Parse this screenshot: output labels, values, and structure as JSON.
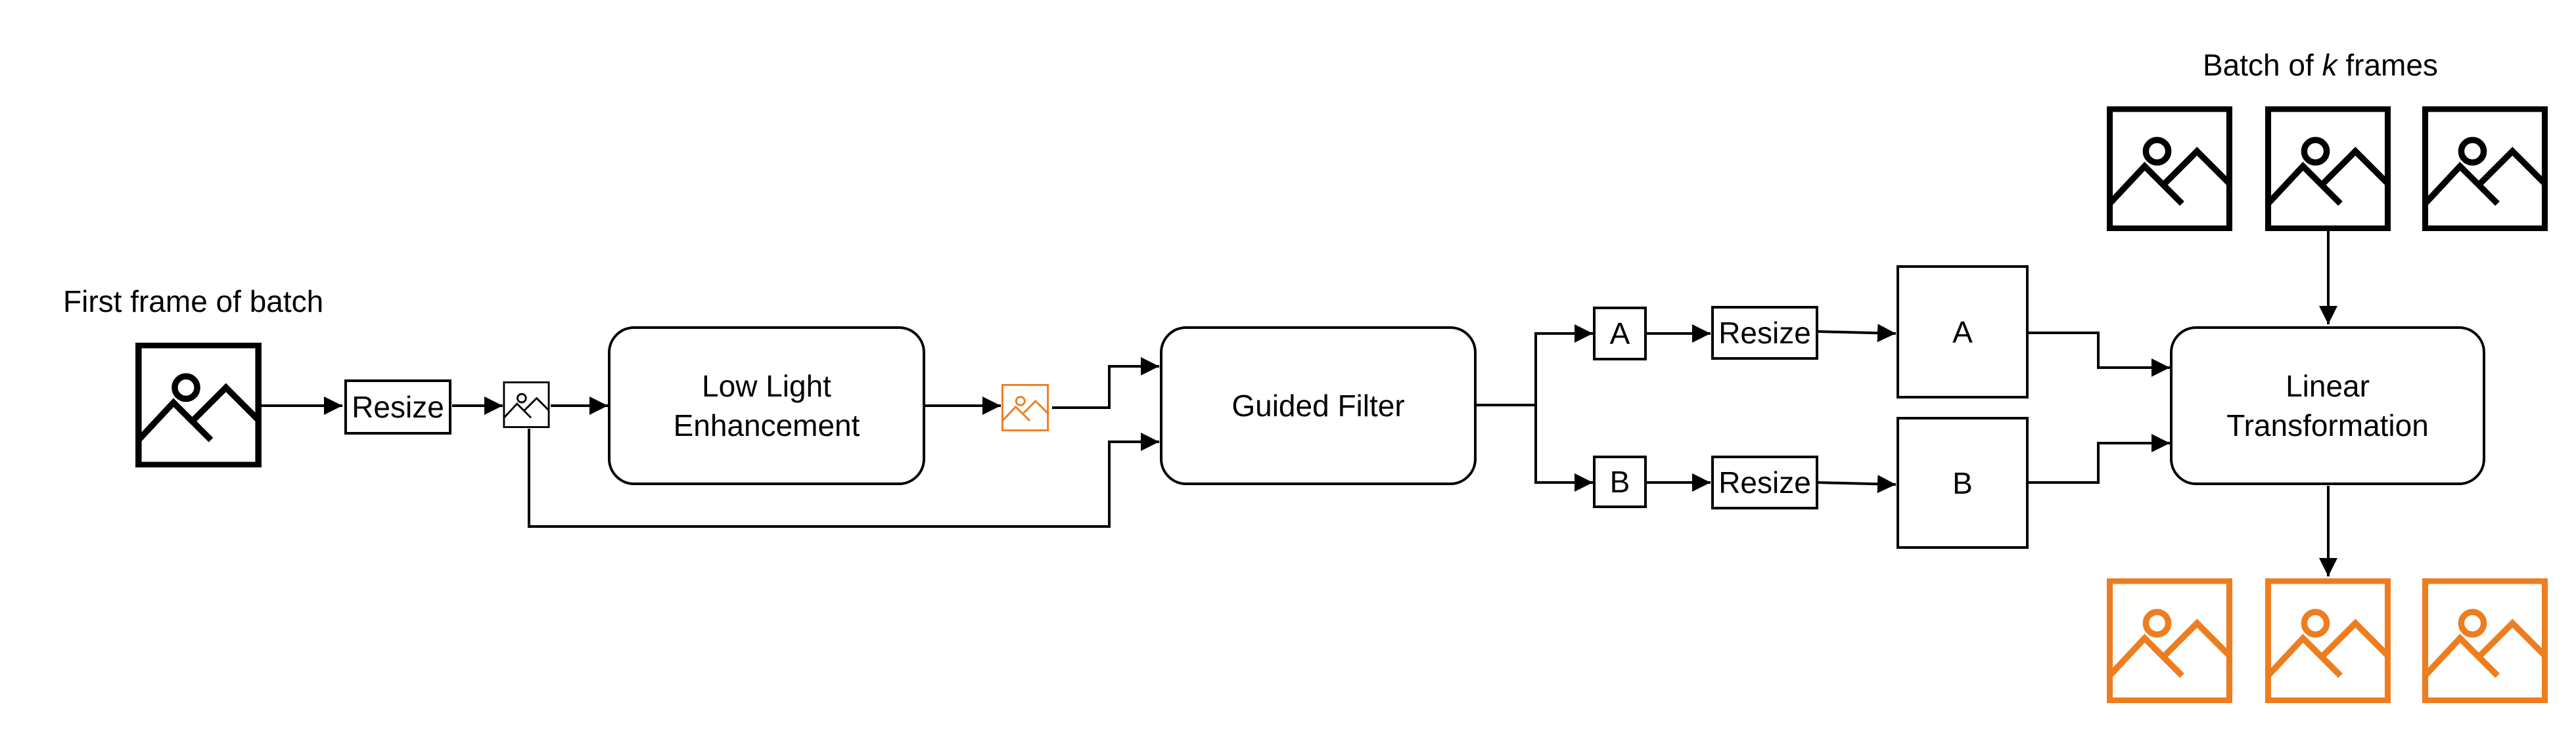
{
  "labels": {
    "first_frame": "First frame of batch",
    "batch_prefix": "Batch of ",
    "batch_k": "k",
    "batch_suffix": " frames"
  },
  "nodes": {
    "resize_1": "Resize",
    "low_light": "Low Light\nEnhancement",
    "guided_filter": "Guided Filter",
    "a_small": "A",
    "b_small": "B",
    "resize_a": "Resize",
    "resize_b": "Resize",
    "a_large": "A",
    "b_large": "B",
    "linear_transform": "Linear\nTransformation"
  },
  "icons": {
    "input_image": "image-icon",
    "resized_image": "image-icon",
    "enhanced_image": "image-icon",
    "batch_frames": [
      "image-icon",
      "image-icon",
      "image-icon"
    ],
    "output_frames": [
      "image-icon",
      "image-icon",
      "image-icon"
    ]
  },
  "colors": {
    "stroke": "#000000",
    "highlight": "#ed7d1f",
    "background": "#ffffff"
  }
}
